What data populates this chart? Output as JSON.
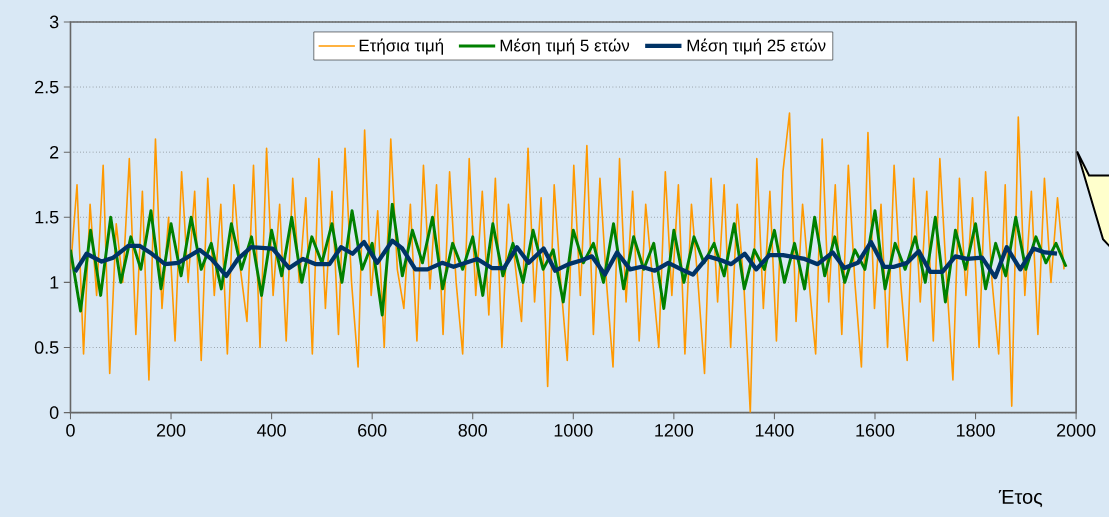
{
  "chart_data": {
    "type": "line",
    "xlabel": "Έτος",
    "xlim": [
      0,
      2000
    ],
    "ylim": [
      0,
      3
    ],
    "xticks": [
      0,
      200,
      400,
      600,
      800,
      1000,
      1200,
      1400,
      1600,
      1800,
      2000
    ],
    "yticks": [
      0,
      0.5,
      1,
      1.5,
      2,
      2.5,
      3
    ],
    "grid": "y",
    "legend": "top",
    "series": [
      {
        "name": "Ετήσια τιμή",
        "color": "#ff9900",
        "x": [
          0,
          13,
          26,
          39,
          52,
          65,
          78,
          91,
          104,
          117,
          130,
          143,
          156,
          169,
          182,
          195,
          208,
          221,
          234,
          247,
          260,
          273,
          286,
          299,
          312,
          325,
          338,
          351,
          364,
          377,
          390,
          403,
          416,
          429,
          442,
          455,
          468,
          481,
          494,
          507,
          520,
          533,
          546,
          559,
          572,
          585,
          598,
          611,
          624,
          637,
          650,
          663,
          676,
          689,
          702,
          715,
          728,
          741,
          754,
          767,
          780,
          793,
          806,
          819,
          832,
          845,
          858,
          871,
          884,
          897,
          910,
          923,
          936,
          949,
          962,
          975,
          988,
          1001,
          1014,
          1027,
          1040,
          1053,
          1066,
          1079,
          1092,
          1105,
          1118,
          1131,
          1144,
          1157,
          1170,
          1183,
          1196,
          1209,
          1222,
          1235,
          1248,
          1261,
          1274,
          1287,
          1300,
          1313,
          1326,
          1339,
          1352,
          1365,
          1378,
          1391,
          1404,
          1417,
          1430,
          1443,
          1456,
          1469,
          1482,
          1495,
          1508,
          1521,
          1534,
          1547,
          1560,
          1573,
          1586,
          1599,
          1612,
          1625,
          1638,
          1651,
          1664,
          1677,
          1690,
          1703,
          1716,
          1729,
          1742,
          1755,
          1768,
          1781,
          1794,
          1807,
          1820,
          1833,
          1846,
          1859,
          1872,
          1885,
          1898,
          1911,
          1924,
          1937,
          1950,
          1963,
          1976
        ],
        "values": [
          1.1,
          1.75,
          0.45,
          1.6,
          0.9,
          1.9,
          0.3,
          1.45,
          1.0,
          1.95,
          0.6,
          1.7,
          0.25,
          2.1,
          0.8,
          1.5,
          0.55,
          1.85,
          1.0,
          1.7,
          0.4,
          1.8,
          0.9,
          1.6,
          0.45,
          1.75,
          1.1,
          0.7,
          1.9,
          0.5,
          2.03,
          0.9,
          1.6,
          0.55,
          1.8,
          1.0,
          1.65,
          0.45,
          1.95,
          0.8,
          1.7,
          0.6,
          2.03,
          1.0,
          0.35,
          2.17,
          0.9,
          1.55,
          0.5,
          2.1,
          1.1,
          0.8,
          1.6,
          0.55,
          1.9,
          0.95,
          1.75,
          0.6,
          1.85,
          1.0,
          0.45,
          1.95,
          0.9,
          1.7,
          0.75,
          1.8,
          0.5,
          1.6,
          1.15,
          0.7,
          2.03,
          0.85,
          1.65,
          0.2,
          1.75,
          1.0,
          0.4,
          1.9,
          0.9,
          2.05,
          0.6,
          1.8,
          1.0,
          0.35,
          1.95,
          0.85,
          1.7,
          0.55,
          1.6,
          1.05,
          0.5,
          1.85,
          0.9,
          1.75,
          0.45,
          1.6,
          1.0,
          0.3,
          1.8,
          0.85,
          1.75,
          0.5,
          1.6,
          1.0,
          0.0,
          1.95,
          0.8,
          1.7,
          0.55,
          1.85,
          2.3,
          0.7,
          1.6,
          1.0,
          0.45,
          2.1,
          0.85,
          1.75,
          0.6,
          1.9,
          1.0,
          0.35,
          2.15,
          0.8,
          1.6,
          0.5,
          1.9,
          1.0,
          0.4,
          1.8,
          0.85,
          1.7,
          0.55,
          1.95,
          1.05,
          0.25,
          1.8,
          0.9,
          1.65,
          0.5,
          1.85,
          1.0,
          0.45,
          1.75,
          0.05,
          2.27,
          0.9,
          1.7,
          0.6,
          1.8,
          1.0,
          1.65,
          1.1
        ]
      },
      {
        "name": "Μέση τιμή 5 ετών",
        "color": "#008000",
        "x": [
          0,
          20,
          40,
          60,
          80,
          100,
          120,
          140,
          160,
          180,
          200,
          220,
          240,
          260,
          280,
          300,
          320,
          340,
          360,
          380,
          400,
          420,
          440,
          460,
          480,
          500,
          520,
          540,
          560,
          580,
          600,
          620,
          640,
          660,
          680,
          700,
          720,
          740,
          760,
          780,
          800,
          820,
          840,
          860,
          880,
          900,
          920,
          940,
          960,
          980,
          1000,
          1020,
          1040,
          1060,
          1080,
          1100,
          1120,
          1140,
          1160,
          1180,
          1200,
          1220,
          1240,
          1260,
          1280,
          1300,
          1320,
          1340,
          1360,
          1380,
          1400,
          1420,
          1440,
          1460,
          1480,
          1500,
          1520,
          1540,
          1560,
          1580,
          1600,
          1620,
          1640,
          1660,
          1680,
          1700,
          1720,
          1740,
          1760,
          1780,
          1800,
          1820,
          1840,
          1860,
          1880,
          1900,
          1920,
          1940,
          1960,
          1980
        ],
        "values": [
          1.25,
          0.78,
          1.4,
          0.9,
          1.5,
          1.0,
          1.35,
          1.1,
          1.55,
          0.95,
          1.45,
          1.05,
          1.5,
          1.1,
          1.3,
          0.95,
          1.45,
          1.1,
          1.35,
          0.9,
          1.4,
          1.05,
          1.5,
          1.0,
          1.35,
          1.15,
          1.45,
          1.0,
          1.55,
          1.1,
          1.3,
          0.75,
          1.6,
          1.05,
          1.4,
          1.15,
          1.5,
          0.95,
          1.3,
          1.1,
          1.35,
          0.9,
          1.45,
          1.05,
          1.3,
          1.0,
          1.4,
          1.1,
          1.25,
          0.85,
          1.4,
          1.15,
          1.3,
          1.0,
          1.45,
          0.95,
          1.35,
          1.1,
          1.3,
          0.8,
          1.4,
          1.0,
          1.35,
          1.15,
          1.3,
          1.05,
          1.45,
          0.95,
          1.25,
          1.1,
          1.4,
          1.0,
          1.3,
          0.95,
          1.5,
          1.05,
          1.35,
          1.0,
          1.25,
          1.1,
          1.55,
          0.95,
          1.3,
          1.1,
          1.35,
          1.0,
          1.5,
          0.85,
          1.4,
          1.1,
          1.45,
          0.95,
          1.3,
          1.05,
          1.5,
          1.1,
          1.35,
          1.15,
          1.3,
          1.12
        ]
      },
      {
        "name": "Μέση τιμή 25 ετών",
        "color": "#003366",
        "x": [
          9,
          32,
          62,
          85,
          115,
          138,
          158,
          188,
          214,
          257,
          280,
          310,
          333,
          359,
          402,
          435,
          462,
          488,
          515,
          538,
          561,
          584,
          610,
          640,
          660,
          686,
          710,
          739,
          762,
          809,
          838,
          862,
          888,
          911,
          941,
          964,
          991,
          1017,
          1037,
          1063,
          1087,
          1113,
          1136,
          1162,
          1189,
          1215,
          1238,
          1268,
          1294,
          1314,
          1341,
          1364,
          1390,
          1417,
          1460,
          1486,
          1516,
          1539,
          1566,
          1592,
          1618,
          1638,
          1664,
          1687,
          1710,
          1734,
          1760,
          1783,
          1813,
          1839,
          1862,
          1889,
          1915,
          1938,
          1962
        ],
        "values": [
          1.08,
          1.22,
          1.16,
          1.19,
          1.28,
          1.28,
          1.23,
          1.14,
          1.15,
          1.25,
          1.18,
          1.05,
          1.18,
          1.27,
          1.26,
          1.11,
          1.18,
          1.14,
          1.14,
          1.27,
          1.22,
          1.31,
          1.15,
          1.32,
          1.26,
          1.1,
          1.1,
          1.15,
          1.12,
          1.18,
          1.11,
          1.11,
          1.27,
          1.15,
          1.26,
          1.09,
          1.14,
          1.17,
          1.2,
          1.06,
          1.23,
          1.1,
          1.12,
          1.09,
          1.15,
          1.1,
          1.06,
          1.2,
          1.17,
          1.14,
          1.22,
          1.1,
          1.21,
          1.21,
          1.18,
          1.14,
          1.23,
          1.11,
          1.15,
          1.31,
          1.12,
          1.12,
          1.15,
          1.24,
          1.08,
          1.08,
          1.2,
          1.18,
          1.19,
          1.04,
          1.27,
          1.1,
          1.26,
          1.23,
          1.22
        ]
      }
    ]
  }
}
